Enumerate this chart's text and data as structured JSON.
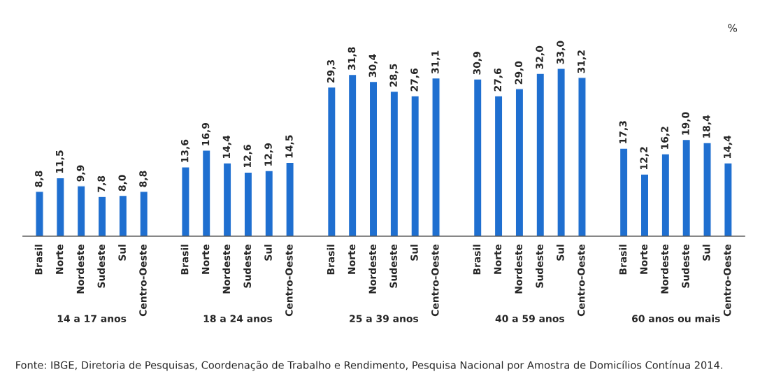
{
  "chart_data": {
    "type": "bar",
    "categories": [
      "Brasil",
      "Norte",
      "Nordeste",
      "Sudeste",
      "Sul",
      "Centro-Oeste",
      "Brasil",
      "Norte",
      "Nordeste",
      "Sudeste",
      "Sul",
      "Centro-Oeste",
      "Brasil",
      "Norte",
      "Nordeste",
      "Sudeste",
      "Sul",
      "Centro-Oeste",
      "Brasil",
      "Norte",
      "Nordeste",
      "Sudeste",
      "Sul",
      "Centro-Oeste",
      "Brasil",
      "Norte",
      "Nordeste",
      "Sudeste",
      "Sul",
      "Centro-Oeste"
    ],
    "values": [
      8.8,
      11.5,
      9.9,
      7.8,
      8.0,
      8.8,
      13.6,
      16.9,
      14.4,
      12.6,
      12.9,
      14.5,
      29.3,
      31.8,
      30.4,
      28.5,
      27.6,
      31.1,
      30.9,
      27.6,
      29.0,
      32.0,
      33.0,
      31.2,
      17.3,
      12.2,
      16.2,
      19.0,
      18.4,
      14.4
    ],
    "value_labels": [
      "8,8",
      "11,5",
      "9,9",
      "7,8",
      "8,0",
      "8,8",
      "13,6",
      "16,9",
      "14,4",
      "12,6",
      "12,9",
      "14,5",
      "29,3",
      "31,8",
      "30,4",
      "28,5",
      "27,6",
      "31,1",
      "30,9",
      "27,6",
      "29,0",
      "32,0",
      "33,0",
      "31,2",
      "17,3",
      "12,2",
      "16,2",
      "19,0",
      "18,4",
      "14,4"
    ],
    "color": "#1f6fd0",
    "annotations": [
      "%",
      "14 a 17 anos",
      "18 a 24 anos",
      "25 a 39 anos",
      "40 a 59 anos",
      "60 anos ou mais",
      "Fonte: IBGE, Diretoria de Pesquisas, Coordenação de Trabalho e Rendimento, Pesquisa Nacional por Amostra de Domicílios Contínua 2014."
    ],
    "grid": false,
    "legend": false
  }
}
